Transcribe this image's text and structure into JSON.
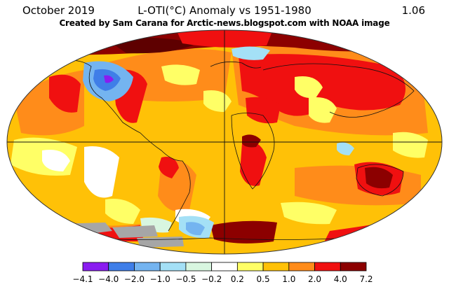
{
  "header": {
    "date": "October 2019",
    "title": "L-OTI(°C) Anomaly vs 1951-1980",
    "global_mean": "1.06",
    "credit": "Created by Sam Carana for Arctic-news.blogspot.com with NOAA image"
  },
  "legend": {
    "breaks": [
      "−4.1",
      "−4.0",
      "−2.0",
      "−1.0",
      "−0.5",
      "−0.2",
      "0.2",
      "0.5",
      "1.0",
      "2.0",
      "4.0",
      "7.2"
    ],
    "colors": [
      "#8a1cf0",
      "#3f7ee8",
      "#74b4f0",
      "#a4e0f6",
      "#d8f6e0",
      "#ffffff",
      "#ffff66",
      "#ffc107",
      "#ff8c1a",
      "#f01010",
      "#8c0000"
    ]
  },
  "map": {
    "ocean_base_color": "#ffc107",
    "no_data_color": "#a6a6a6"
  }
}
